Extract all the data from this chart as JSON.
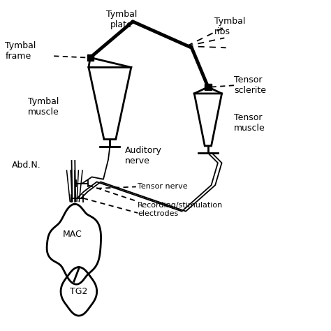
{
  "bg_color": "#ffffff",
  "line_color": "#000000",
  "figsize": [
    4.74,
    4.74
  ],
  "dpi": 100,
  "xlim": [
    0,
    10
  ],
  "ylim": [
    0,
    10
  ],
  "labels": {
    "tymbal_plate": "Tymbal\nplate",
    "tymbal_ribs": "Tymbal\nribs",
    "tymbal_frame": "Tymbal\nframe",
    "tymbal_muscle": "Tymbal\nmuscle",
    "auditory_nerve": "Auditory\nnerve",
    "tensor_sclerite": "Tensor\nsclerite",
    "tensor_muscle": "Tensor\nmuscle",
    "abd_n": "Abd.N.",
    "tensor_nerve": "Tensor nerve",
    "recording": "Recording/stimulation\nelectrodes",
    "mac": "MAC",
    "tg2": "TG2"
  }
}
